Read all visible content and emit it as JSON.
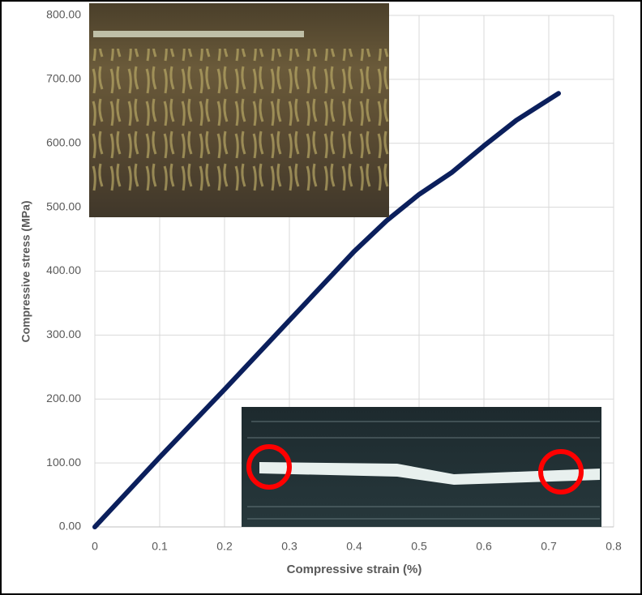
{
  "chart_data": {
    "type": "line",
    "x_label": "Compressive strain (%)",
    "y_label": "Compressive stress (MPa)",
    "x": [
      0,
      0.1,
      0.2,
      0.3,
      0.4,
      0.45,
      0.5,
      0.55,
      0.6,
      0.65,
      0.715
    ],
    "values": [
      0,
      109,
      215,
      323,
      431,
      479,
      520,
      554,
      596,
      636,
      678
    ],
    "color": "#0b1f5c",
    "xlim": [
      0,
      0.8
    ],
    "xticks": [
      0,
      0.1,
      0.2,
      0.3,
      0.4,
      0.5,
      0.6,
      0.7,
      0.8
    ],
    "ylim": [
      0,
      800
    ],
    "yticks": [
      {
        "value": 0,
        "label": "0.00"
      },
      {
        "value": 100,
        "label": "100.00"
      },
      {
        "value": 200,
        "label": "200.00"
      },
      {
        "value": 300,
        "label": "300.00"
      },
      {
        "value": 400,
        "label": "400.00"
      },
      {
        "value": 500,
        "label": "500.00"
      },
      {
        "value": 600,
        "label": "600.00"
      },
      {
        "value": 700,
        "label": "700.00"
      },
      {
        "value": 800,
        "label": "800.00"
      }
    ],
    "grid": true
  }
}
